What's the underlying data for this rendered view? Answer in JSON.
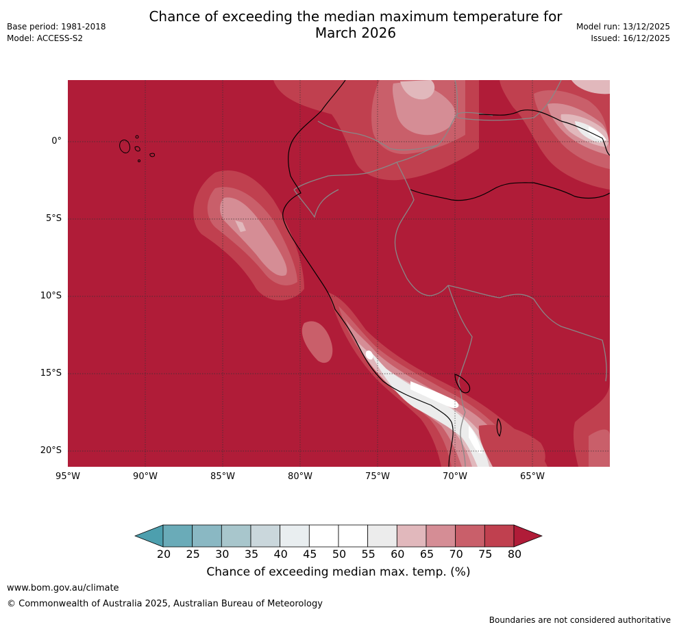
{
  "header": {
    "title_line1": "Chance of exceeding the median maximum temperature for",
    "title_line2": "March 2026",
    "base_period": "Base period: 1981-2018",
    "model": "Model: ACCESS-S2",
    "model_run": "Model run: 13/12/2025",
    "issued": "Issued: 16/12/2025"
  },
  "map": {
    "lat_labels": [
      "0°",
      "5°S",
      "10°S",
      "15°S",
      "20°S"
    ],
    "lon_labels": [
      "95°W",
      "90°W",
      "85°W",
      "80°W",
      "75°W",
      "70°W",
      "65°W"
    ],
    "background_category": "80+",
    "colors": {
      "c80plus": "#b01c38",
      "c75_80": "#c0404f",
      "c70_75": "#c95f6a",
      "c65_70": "#d58d95",
      "c60_65": "#e1b8bc",
      "c55_60": "#ececec",
      "c50_55": "#ffffff",
      "coast": "#000000",
      "border": "#888888",
      "grid": "#333333"
    }
  },
  "colorbar": {
    "ticks": [
      "20",
      "25",
      "30",
      "35",
      "40",
      "45",
      "50",
      "55",
      "60",
      "65",
      "70",
      "75",
      "80"
    ],
    "colors": [
      "#6aabb8",
      "#8ab8c3",
      "#a8c6cc",
      "#cad7dc",
      "#e9eef0",
      "#ffffff",
      "#ffffff",
      "#ececec",
      "#e1b8bc",
      "#d58d95",
      "#c95f6a",
      "#c0404f"
    ],
    "under_color": "#4d9fae",
    "over_color": "#b01c38",
    "label": "Chance of exceeding median max. temp. (%)"
  },
  "footer": {
    "url": "www.bom.gov.au/climate",
    "copyright": "© Commonwealth of Australia 2025, Australian Bureau of Meteorology",
    "note": "Boundaries are not considered authoritative"
  }
}
